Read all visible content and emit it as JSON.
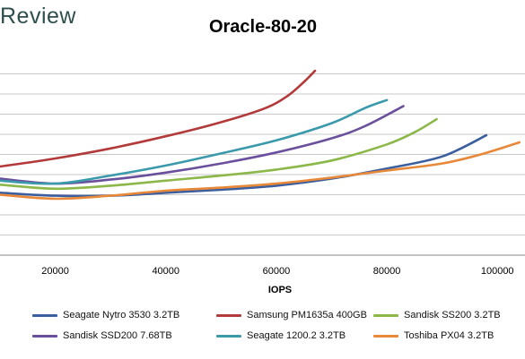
{
  "brand": {
    "text": "Review"
  },
  "chart_data": {
    "type": "line",
    "title": "Oracle-80-20",
    "xlabel": "IOPS",
    "ylabel": "",
    "xlim": [
      10000,
      105000
    ],
    "ylim": [
      0,
      10
    ],
    "x_ticks": [
      20000,
      40000,
      60000,
      80000,
      100000
    ],
    "y_gridlines": [
      1,
      2,
      3,
      4,
      5,
      6,
      7,
      8,
      9
    ],
    "grid": true,
    "legend_position": "bottom",
    "series": [
      {
        "name": "Seagate Nytro 3530 3.2TB",
        "color": "#3b5f9e",
        "points": [
          [
            10000,
            3.1
          ],
          [
            20000,
            2.95
          ],
          [
            30000,
            2.95
          ],
          [
            40000,
            3.1
          ],
          [
            50000,
            3.25
          ],
          [
            60000,
            3.45
          ],
          [
            70000,
            3.8
          ],
          [
            80000,
            4.3
          ],
          [
            90000,
            4.9
          ],
          [
            98000,
            5.95
          ]
        ]
      },
      {
        "name": "Samsung PM1635a 400GB",
        "color": "#b23a3a",
        "points": [
          [
            10000,
            4.4
          ],
          [
            20000,
            4.8
          ],
          [
            30000,
            5.3
          ],
          [
            40000,
            5.9
          ],
          [
            50000,
            6.6
          ],
          [
            58000,
            7.3
          ],
          [
            62000,
            7.9
          ],
          [
            65000,
            8.6
          ],
          [
            67000,
            9.15
          ]
        ]
      },
      {
        "name": "Sandisk SS200 3.2TB",
        "color": "#8cb84a",
        "points": [
          [
            10000,
            3.5
          ],
          [
            20000,
            3.3
          ],
          [
            30000,
            3.45
          ],
          [
            40000,
            3.7
          ],
          [
            50000,
            3.95
          ],
          [
            60000,
            4.25
          ],
          [
            70000,
            4.7
          ],
          [
            80000,
            5.5
          ],
          [
            85000,
            6.1
          ],
          [
            89000,
            6.75
          ]
        ]
      },
      {
        "name": "Sandisk SSD200 7.68TB",
        "color": "#6a4f9c",
        "points": [
          [
            10000,
            3.8
          ],
          [
            20000,
            3.55
          ],
          [
            30000,
            3.75
          ],
          [
            40000,
            4.1
          ],
          [
            50000,
            4.55
          ],
          [
            60000,
            5.1
          ],
          [
            70000,
            5.8
          ],
          [
            76000,
            6.4
          ],
          [
            83000,
            7.4
          ]
        ]
      },
      {
        "name": "Seagate 1200.2 3.2TB",
        "color": "#3a9aab",
        "points": [
          [
            10000,
            3.7
          ],
          [
            20000,
            3.55
          ],
          [
            30000,
            3.95
          ],
          [
            40000,
            4.45
          ],
          [
            50000,
            5.05
          ],
          [
            60000,
            5.7
          ],
          [
            70000,
            6.55
          ],
          [
            76000,
            7.3
          ],
          [
            80000,
            7.7
          ]
        ]
      },
      {
        "name": "Toshiba PX04 3.2TB",
        "color": "#e8893a",
        "points": [
          [
            10000,
            3.0
          ],
          [
            20000,
            2.8
          ],
          [
            30000,
            2.95
          ],
          [
            40000,
            3.2
          ],
          [
            50000,
            3.35
          ],
          [
            60000,
            3.55
          ],
          [
            70000,
            3.85
          ],
          [
            80000,
            4.2
          ],
          [
            90000,
            4.55
          ],
          [
            97000,
            5.0
          ],
          [
            104000,
            5.6
          ]
        ]
      }
    ]
  }
}
